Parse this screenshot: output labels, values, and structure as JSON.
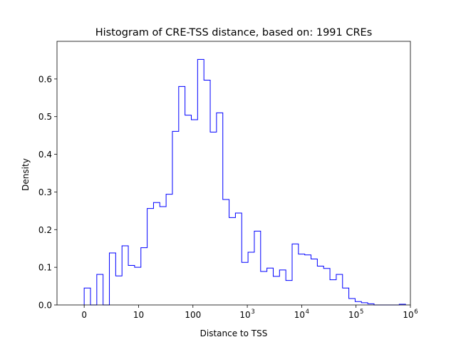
{
  "chart_data": {
    "type": "histogram",
    "title": "Histogram of CRE-TSS distance, based on: 1991 CREs",
    "xlabel": "Distance to TSS",
    "ylabel": "Density",
    "x_scale": "symlog",
    "xlim": [
      -0.5,
      6
    ],
    "ylim": [
      0,
      0.7
    ],
    "grid": false,
    "x_ticks": [
      {
        "pos": 0,
        "label": "0",
        "sup": ""
      },
      {
        "pos": 1,
        "label": "10",
        "sup": ""
      },
      {
        "pos": 2,
        "label": "100",
        "sup": ""
      },
      {
        "pos": 3,
        "label": "10",
        "sup": "3"
      },
      {
        "pos": 4,
        "label": "10",
        "sup": "4"
      },
      {
        "pos": 5,
        "label": "10",
        "sup": "5"
      },
      {
        "pos": 6,
        "label": "10",
        "sup": "6"
      }
    ],
    "y_ticks": [
      "0.0",
      "0.1",
      "0.2",
      "0.3",
      "0.4",
      "0.5",
      "0.6"
    ],
    "bins": {
      "start": 0,
      "width": 0.1159,
      "values": [
        0.045,
        0.0,
        0.081,
        0.0,
        0.138,
        0.077,
        0.157,
        0.105,
        0.1,
        0.152,
        0.256,
        0.272,
        0.261,
        0.294,
        0.461,
        0.58,
        0.504,
        0.492,
        0.652,
        0.597,
        0.459,
        0.51,
        0.28,
        0.232,
        0.244,
        0.113,
        0.14,
        0.196,
        0.089,
        0.098,
        0.076,
        0.093,
        0.065,
        0.162,
        0.135,
        0.133,
        0.122,
        0.103,
        0.097,
        0.067,
        0.081,
        0.045,
        0.017,
        0.009,
        0.006,
        0.003,
        0.0,
        0.0,
        0.0,
        0.0,
        0.002
      ],
      "color": "#0000ff"
    }
  }
}
